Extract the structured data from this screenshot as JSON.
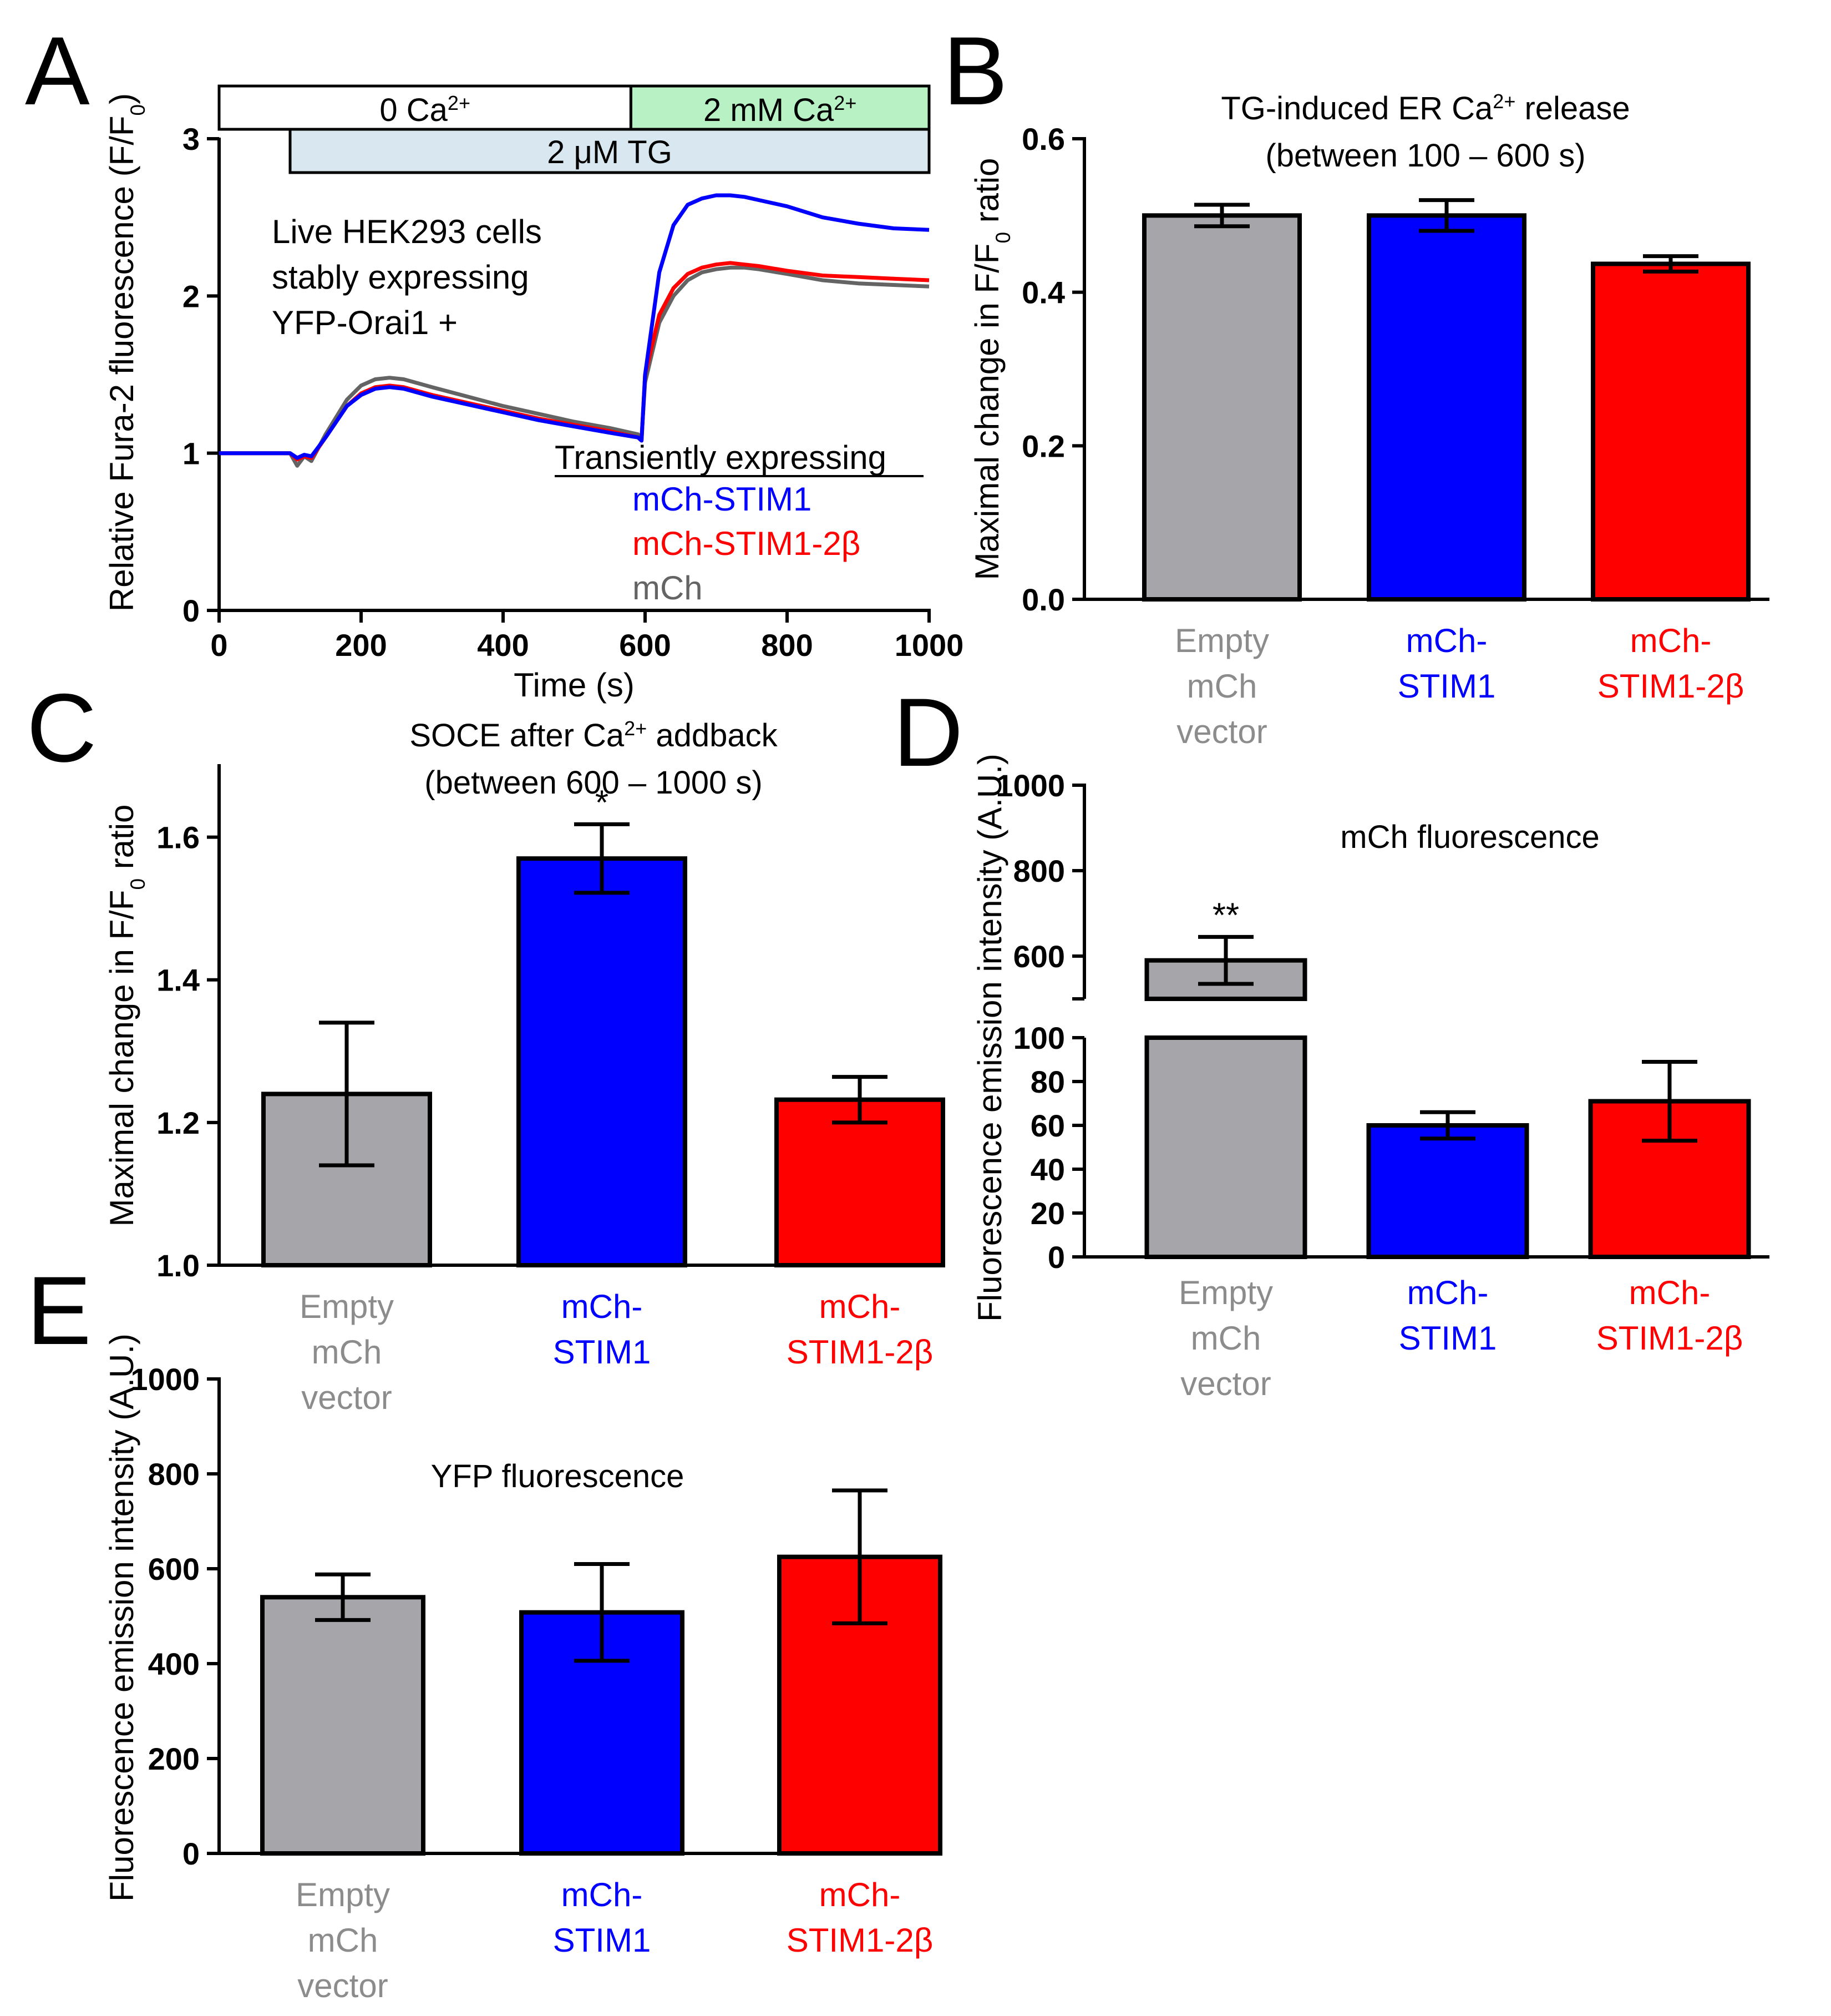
{
  "figure": {
    "panel_letters": [
      "A",
      "B",
      "C",
      "D",
      "E"
    ],
    "colors": {
      "gray": "#a6a5aa",
      "blue": "#0000ff",
      "red": "#ff0000",
      "black": "#000000",
      "ca_box": "#b7f1c4",
      "tg_box": "#d9e7f1",
      "label_gray": "#8c8c8c",
      "trace_gray": "#646464"
    }
  },
  "chart_data": [
    {
      "panel": "A",
      "type": "line",
      "title": "",
      "xlabel": "Time (s)",
      "ylabel": "Relative Fura-2 fluorescence (F/F",
      "ylabel_sub": "0",
      "ylabel_end": ")",
      "xlim": [
        0,
        1000
      ],
      "ylim": [
        0,
        3
      ],
      "xticks": [
        "0",
        "200",
        "400",
        "600",
        "800",
        "1000"
      ],
      "yticks": [
        "0",
        "1",
        "2",
        "3"
      ],
      "protocol": {
        "zero_ca": {
          "label": "0 Ca",
          "sup": "2+",
          "range": [
            0,
            580
          ]
        },
        "two_mm_ca": {
          "label": "2 mM Ca",
          "sup": "2+",
          "range": [
            580,
            1000
          ]
        },
        "tg": {
          "label": "2 μM TG",
          "range": [
            100,
            1000
          ]
        }
      },
      "annotation": [
        "Live HEK293 cells",
        "stably expressing",
        "YFP-Orai1  +"
      ],
      "legend_title": "Transiently expressing",
      "series": [
        {
          "name": "mCh-STIM1",
          "color": "#0000ff",
          "x": [
            0,
            100,
            110,
            120,
            130,
            150,
            180,
            200,
            220,
            240,
            260,
            300,
            350,
            400,
            450,
            500,
            550,
            590,
            595,
            600,
            620,
            640,
            660,
            680,
            700,
            720,
            740,
            760,
            800,
            850,
            900,
            950,
            1000
          ],
          "values": [
            1.0,
            1.0,
            0.97,
            0.99,
            0.98,
            1.1,
            1.3,
            1.37,
            1.41,
            1.42,
            1.41,
            1.36,
            1.31,
            1.26,
            1.21,
            1.17,
            1.13,
            1.1,
            1.08,
            1.5,
            2.15,
            2.45,
            2.58,
            2.62,
            2.64,
            2.64,
            2.63,
            2.61,
            2.57,
            2.5,
            2.46,
            2.43,
            2.42
          ]
        },
        {
          "name": "mCh-STIM1-2β",
          "color": "#ff0000",
          "x": [
            0,
            100,
            110,
            120,
            130,
            150,
            180,
            200,
            220,
            240,
            260,
            300,
            350,
            400,
            450,
            500,
            550,
            590,
            595,
            600,
            620,
            640,
            660,
            680,
            700,
            720,
            740,
            760,
            800,
            850,
            900,
            950,
            1000
          ],
          "values": [
            1.0,
            1.0,
            0.96,
            0.98,
            0.97,
            1.1,
            1.3,
            1.38,
            1.42,
            1.43,
            1.42,
            1.37,
            1.32,
            1.27,
            1.22,
            1.18,
            1.14,
            1.1,
            1.08,
            1.5,
            1.88,
            2.05,
            2.14,
            2.18,
            2.2,
            2.21,
            2.2,
            2.19,
            2.16,
            2.13,
            2.12,
            2.11,
            2.1
          ]
        },
        {
          "name": "mCh",
          "color": "#646464",
          "x": [
            0,
            100,
            110,
            120,
            130,
            150,
            180,
            200,
            220,
            240,
            260,
            300,
            350,
            400,
            450,
            500,
            550,
            590,
            595,
            600,
            620,
            640,
            660,
            680,
            700,
            720,
            740,
            760,
            800,
            850,
            900,
            950,
            1000
          ],
          "values": [
            1.0,
            1.0,
            0.92,
            0.98,
            0.95,
            1.12,
            1.34,
            1.43,
            1.47,
            1.48,
            1.47,
            1.42,
            1.36,
            1.3,
            1.25,
            1.2,
            1.16,
            1.12,
            1.1,
            1.45,
            1.83,
            2.0,
            2.1,
            2.15,
            2.17,
            2.18,
            2.18,
            2.17,
            2.14,
            2.1,
            2.08,
            2.07,
            2.06
          ]
        }
      ]
    },
    {
      "panel": "B",
      "type": "bar",
      "title": "TG-induced ER Ca",
      "title_sup": "2+",
      "title_end": " release",
      "subtitle": "(between 100 – 600 s)",
      "ylabel": "Maximal change in F/F",
      "ylabel_sub": "0",
      "ylabel_end": " ratio",
      "ylim": [
        0,
        0.6
      ],
      "yticks": [
        "0.0",
        "0.2",
        "0.4",
        "0.6"
      ],
      "categories": [
        [
          "Empty",
          "mCh",
          "vector"
        ],
        [
          "mCh-",
          "STIM1"
        ],
        [
          "mCh-",
          "STIM1-2β"
        ]
      ],
      "values": [
        0.5,
        0.5,
        0.437
      ],
      "errors": [
        0.014,
        0.02,
        0.01
      ],
      "annotations": [
        "",
        "",
        ""
      ]
    },
    {
      "panel": "C",
      "type": "bar",
      "title": "SOCE after Ca",
      "title_sup": "2+",
      "title_end": " addback",
      "subtitle": "(between 600 – 1000 s)",
      "ylabel": "Maximal change in F/F",
      "ylabel_sub": "0",
      "ylabel_end": " ratio",
      "ylim": [
        1.0,
        1.7
      ],
      "yticks": [
        "1.0",
        "1.2",
        "1.4",
        "1.6"
      ],
      "categories": [
        [
          "Empty",
          "mCh",
          "vector"
        ],
        [
          "mCh-",
          "STIM1"
        ],
        [
          "mCh-",
          "STIM1-2β"
        ]
      ],
      "values": [
        1.24,
        1.57,
        1.232
      ],
      "errors": [
        0.1,
        0.048,
        0.032
      ],
      "annotations": [
        "",
        "*",
        ""
      ]
    },
    {
      "panel": "D",
      "type": "bar",
      "title": "mCh fluorescence",
      "subtitle": "",
      "ylabel": "Fluorescence emission intensity (A.U.)",
      "broken_axis": {
        "lower": [
          0,
          100
        ],
        "upper": [
          500,
          1000
        ]
      },
      "yticks_lower": [
        "0",
        "20",
        "40",
        "60",
        "80",
        "100"
      ],
      "yticks_upper": [
        "600",
        "800",
        "1000"
      ],
      "categories": [
        [
          "Empty",
          "mCh",
          "vector"
        ],
        [
          "mCh-",
          "STIM1"
        ],
        [
          "mCh-",
          "STIM1-2β"
        ]
      ],
      "values": [
        590,
        60,
        71
      ],
      "errors": [
        55,
        6,
        18
      ],
      "annotations": [
        "**",
        "",
        ""
      ]
    },
    {
      "panel": "E",
      "type": "bar",
      "title": "YFP fluorescence",
      "subtitle": "",
      "ylabel": "Fluorescence emission intensity (A.U.)",
      "ylim": [
        0,
        1000
      ],
      "yticks": [
        "0",
        "200",
        "400",
        "600",
        "800",
        "1000"
      ],
      "categories": [
        [
          "Empty",
          "mCh",
          "vector"
        ],
        [
          "mCh-",
          "STIM1"
        ],
        [
          "mCh-",
          "STIM1-2β"
        ]
      ],
      "values": [
        540,
        508,
        625
      ],
      "errors": [
        48,
        102,
        140
      ],
      "annotations": [
        "",
        "",
        ""
      ]
    }
  ]
}
